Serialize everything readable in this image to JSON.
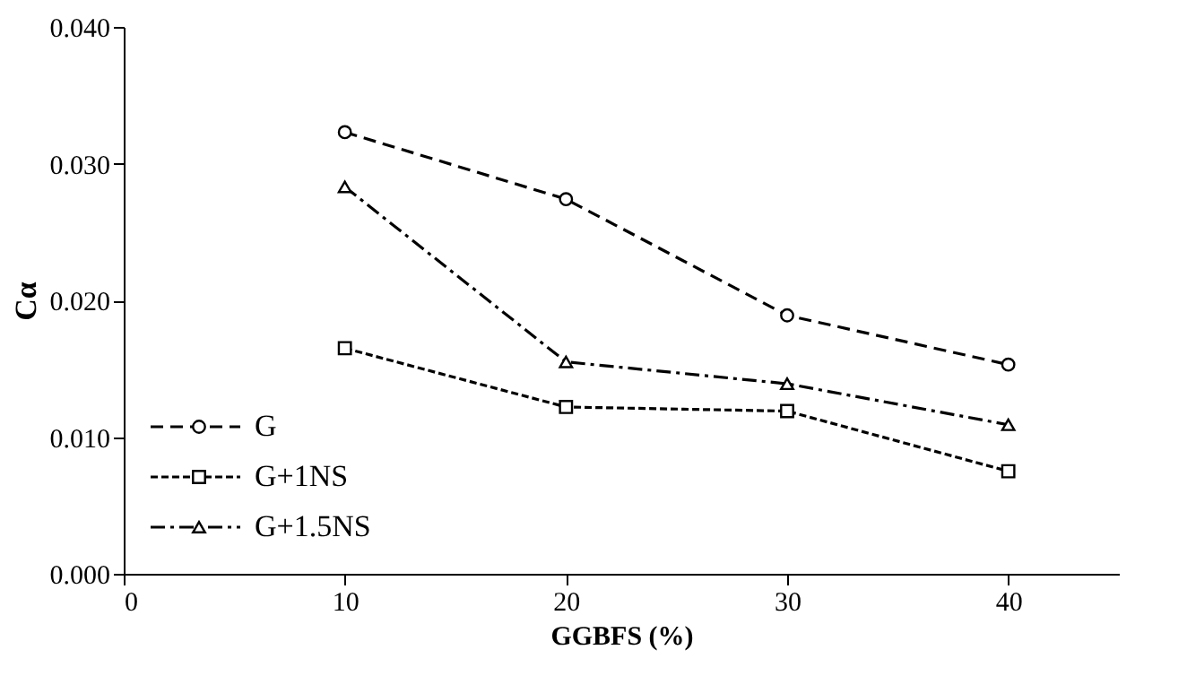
{
  "chart_data": {
    "type": "line",
    "xlabel": "GGBFS (%)",
    "ylabel": "Cα",
    "x": [
      10,
      20,
      30,
      40
    ],
    "series": [
      {
        "name": "G",
        "color": "#000000",
        "values": [
          0.0323,
          0.0274,
          0.0189,
          0.0153
        ],
        "marker": "circle",
        "line_style": "dashed"
      },
      {
        "name": "G+1NS",
        "color": "#000000",
        "values": [
          0.0165,
          0.0122,
          0.0119,
          0.0075
        ],
        "marker": "square",
        "line_style": "dotted"
      },
      {
        "name": "G+1.5NS",
        "color": "#000000",
        "values": [
          0.0283,
          0.0155,
          0.0139,
          0.0109
        ],
        "marker": "triangle",
        "line_style": "dashdot"
      }
    ],
    "xlim": [
      0,
      45
    ],
    "xticks": [
      0,
      10,
      20,
      30,
      40
    ],
    "ylim": [
      0,
      0.04
    ],
    "yticks": [
      {
        "value": 0,
        "label": "0.000"
      },
      {
        "value": 0.01,
        "label": "0.010"
      },
      {
        "value": 0.02,
        "label": "0.020"
      },
      {
        "value": 0.03,
        "label": "0.030"
      },
      {
        "value": 0.04,
        "label": "0.040"
      }
    ],
    "grid": false,
    "legend": "bottom left"
  }
}
